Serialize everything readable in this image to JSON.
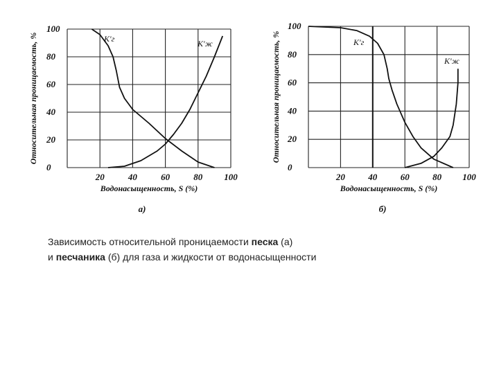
{
  "chart_data": [
    {
      "type": "line",
      "panel": "а)",
      "xlabel": "Водонасыщенность, S (%)",
      "ylabel": "Относительная проницаемость, %",
      "xlim": [
        0,
        100
      ],
      "ylim": [
        0,
        100
      ],
      "x_ticks": [
        "20",
        "40",
        "60",
        "80",
        "100"
      ],
      "y_ticks": [
        "0",
        "20",
        "40",
        "60",
        "80",
        "100"
      ],
      "grid": true,
      "series": [
        {
          "name": "K'г",
          "points": [
            [
              15,
              100
            ],
            [
              20,
              96
            ],
            [
              25,
              88
            ],
            [
              28,
              80
            ],
            [
              30,
              70
            ],
            [
              32,
              58
            ],
            [
              35,
              50
            ],
            [
              40,
              42
            ],
            [
              50,
              32
            ],
            [
              60,
              21
            ],
            [
              70,
              12
            ],
            [
              80,
              4
            ],
            [
              90,
              0
            ]
          ]
        },
        {
          "name": "K'ж",
          "points": [
            [
              25,
              0
            ],
            [
              35,
              1
            ],
            [
              45,
              5
            ],
            [
              55,
              12
            ],
            [
              60,
              17
            ],
            [
              65,
              24
            ],
            [
              70,
              32
            ],
            [
              75,
              42
            ],
            [
              80,
              54
            ],
            [
              85,
              66
            ],
            [
              90,
              80
            ],
            [
              95,
              95
            ]
          ]
        }
      ]
    },
    {
      "type": "line",
      "panel": "б)",
      "xlabel": "Водонасыщенность, S (%)",
      "ylabel": "Относительная проницаемость, %",
      "xlim": [
        0,
        100
      ],
      "ylim": [
        0,
        100
      ],
      "x_ticks": [
        "20",
        "40",
        "60",
        "80",
        "100"
      ],
      "y_ticks": [
        "0",
        "20",
        "40",
        "60",
        "80",
        "100"
      ],
      "grid": true,
      "series": [
        {
          "name": "K'г",
          "points": [
            [
              0,
              100
            ],
            [
              20,
              99
            ],
            [
              30,
              97
            ],
            [
              38,
              93
            ],
            [
              43,
              88
            ],
            [
              47,
              80
            ],
            [
              49,
              70
            ],
            [
              50,
              63
            ],
            [
              52,
              55
            ],
            [
              55,
              45
            ],
            [
              60,
              32
            ],
            [
              65,
              22
            ],
            [
              70,
              14
            ],
            [
              78,
              6
            ],
            [
              90,
              0
            ]
          ]
        },
        {
          "name": "K'ж",
          "points": [
            [
              60,
              0
            ],
            [
              70,
              3
            ],
            [
              78,
              8
            ],
            [
              83,
              14
            ],
            [
              88,
              22
            ],
            [
              90,
              30
            ],
            [
              92,
              45
            ],
            [
              93,
              60
            ],
            [
              93,
              70
            ]
          ]
        }
      ]
    }
  ],
  "caption": {
    "line1_pre": "Зависимость относительной проницаемости ",
    "line1_bold": "песка",
    "line1_post": " (а)",
    "line2_pre": "и ",
    "line2_bold": "песчаника",
    "line2_post": " (б) для газа и жидкости от водонасыщенности"
  }
}
